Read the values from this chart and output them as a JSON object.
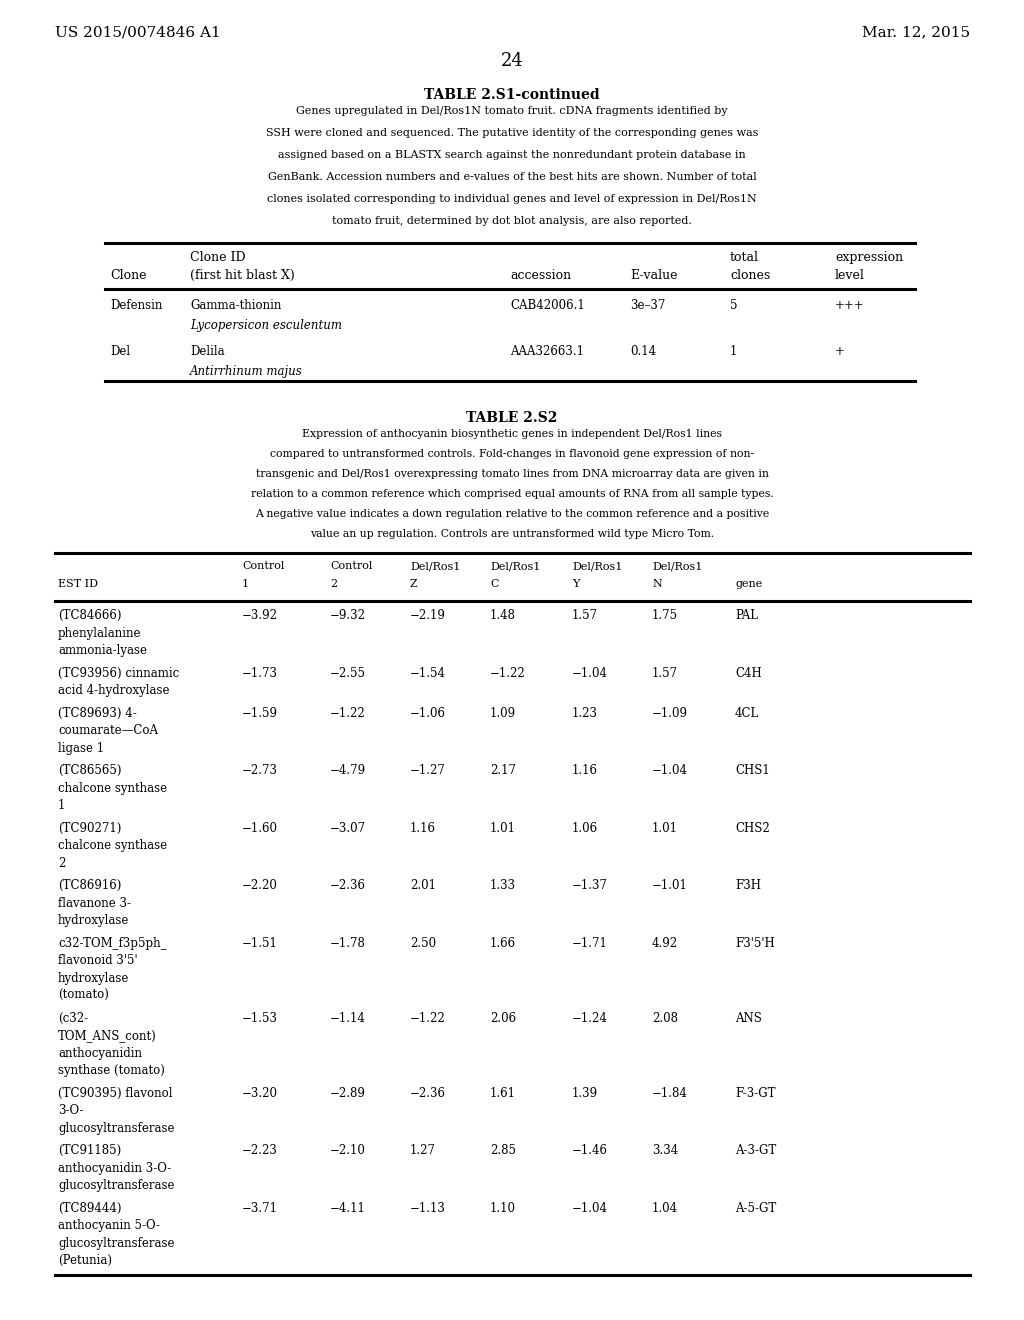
{
  "page_number": "24",
  "patent_left": "US 2015/0074846 A1",
  "patent_right": "Mar. 12, 2015",
  "table1_title": "TABLE 2.S1-continued",
  "table1_caption": "Genes upregulated in Del/Ros1N tomato fruit. cDNA fragments identified by\nSSH were cloned and sequenced. The putative identity of the corresponding genes was\nassigned based on a BLASTX search against the nonredundant protein database in\nGenBank. Accession numbers and e-values of the best hits are shown. Number of total\nclones isolated corresponding to individual genes and level of expression in Del/Ros1N\ntomato fruit, determined by dot blot analysis, are also reported.",
  "table1_col_headers": [
    "Clone",
    "Clone ID\n(first hit blast X)",
    "accession",
    "E-value",
    "total\nclones",
    "expression\nlevel"
  ],
  "table1_rows": [
    [
      "Defensin",
      "Gamma-thionin\nLycopersicon esculentum",
      "CAB42006.1",
      "3e–37",
      "5",
      "+++"
    ],
    [
      "Del",
      "Delila\nAntirrhinum majus",
      "AAA32663.1",
      "0.14",
      "1",
      "+"
    ]
  ],
  "table2_title": "TABLE 2.S2",
  "table2_caption": "Expression of anthocyanin biosynthetic genes in independent Del/Ros1 lines\ncompared to untransformed controls. Fold-changes in flavonoid gene expression of non-\ntransgenic and Del/Ros1 overexpressing tomato lines from DNA microarray data are given in\nrelation to a common reference which comprised equal amounts of RNA from all sample types.\nA negative value indicates a down regulation relative to the common reference and a positive\nvalue an up regulation. Controls are untransformed wild type Micro Tom.",
  "table2_col_headers": [
    "EST ID",
    "Control\n1",
    "Control\n2",
    "Del/Ros1\nZ",
    "Del/Ros1\nC",
    "Del/Ros1\nY",
    "Del/Ros1\nN",
    "gene"
  ],
  "table2_rows": [
    [
      "(TC84666)\nphenylalanine\nammonia-lyase",
      "−3.92",
      "−9.32",
      "−2.19",
      "1.48",
      "1.57",
      "1.75",
      "PAL"
    ],
    [
      "(TC93956) cinnamic\nacid 4-hydroxylase",
      "−1.73",
      "−2.55",
      "−1.54",
      "−1.22",
      "−1.04",
      "1.57",
      "C4H"
    ],
    [
      "(TC89693) 4-\ncoumarate—CoA\nligase 1",
      "−1.59",
      "−1.22",
      "−1.06",
      "1.09",
      "1.23",
      "−1.09",
      "4CL"
    ],
    [
      "(TC86565)\nchalcone synthase\n1",
      "−2.73",
      "−4.79",
      "−1.27",
      "2.17",
      "1.16",
      "−1.04",
      "CHS1"
    ],
    [
      "(TC90271)\nchalcone synthase\n2",
      "−1.60",
      "−3.07",
      "1.16",
      "1.01",
      "1.06",
      "1.01",
      "CHS2"
    ],
    [
      "(TC86916)\nflavanone 3-\nhydroxylase",
      "−2.20",
      "−2.36",
      "2.01",
      "1.33",
      "−1.37",
      "−1.01",
      "F3H"
    ],
    [
      "c32-TOM_f3p5ph_\nflavonoid 3'5'\nhydroxylase\n(tomato)",
      "−1.51",
      "−1.78",
      "2.50",
      "1.66",
      "−1.71",
      "4.92",
      "F3'5'H"
    ],
    [
      "(c32-\nTOM_ANS_cont)\nanthocyanidin\nsynthase (tomato)",
      "−1.53",
      "−1.14",
      "−1.22",
      "2.06",
      "−1.24",
      "2.08",
      "ANS"
    ],
    [
      "(TC90395) flavonol\n3-O-\nglucosyltransferase",
      "−3.20",
      "−2.89",
      "−2.36",
      "1.61",
      "1.39",
      "−1.84",
      "F-3-GT"
    ],
    [
      "(TC91185)\nanthocyanidin 3-O-\nglucosyltransferase",
      "−2.23",
      "−2.10",
      "1.27",
      "2.85",
      "−1.46",
      "3.34",
      "A-3-GT"
    ],
    [
      "(TC89444)\nanthocyanin 5-O-\nglucosyltransferase\n(Petunia)",
      "−3.71",
      "−4.11",
      "−1.13",
      "1.10",
      "−1.04",
      "1.04",
      "A-5-GT"
    ]
  ],
  "bg_color": "#ffffff",
  "text_color": "#000000",
  "font_size_header": 9,
  "font_size_body": 8.5,
  "font_size_patent": 11,
  "font_size_page": 13,
  "font_size_title": 10
}
